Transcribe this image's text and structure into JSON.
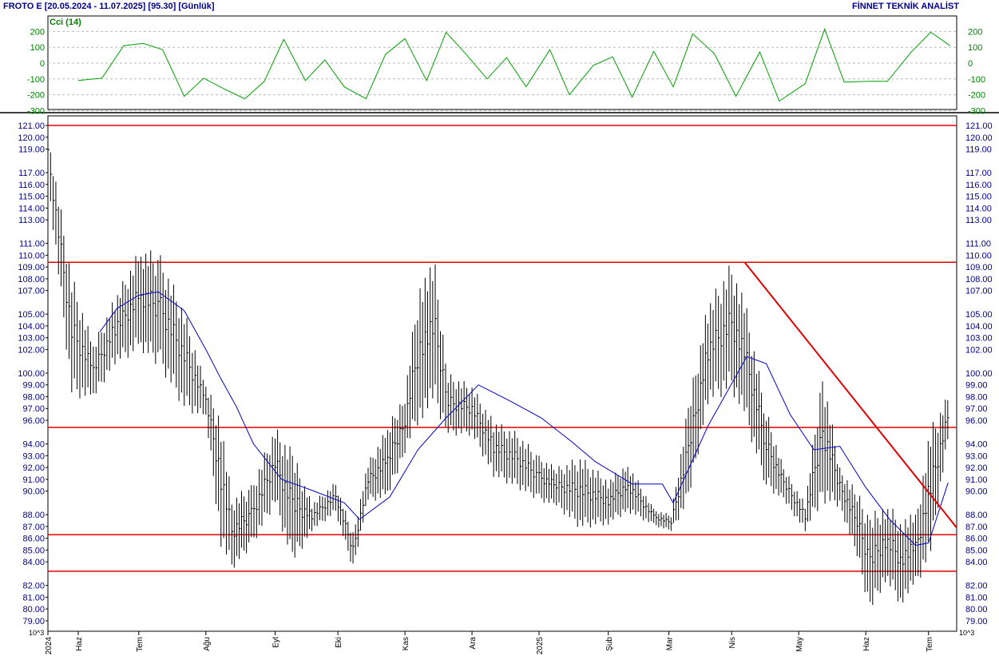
{
  "header": {
    "title": "FROTO E  [20.05.2024 - 11.07.2025]  [95.30]  [Günlük]",
    "brand": "FİNNET TEKNİK ANALİST"
  },
  "chart_data": [
    {
      "type": "line",
      "title": "Cci (14)",
      "ylim": [
        -300,
        300
      ],
      "yticks": [
        "200",
        "100",
        "0",
        "-100",
        "-200",
        "-300"
      ],
      "line_color": "#00a000",
      "x": [
        "2024-06-03",
        "2024-06-14",
        "2024-06-24",
        "2024-07-03",
        "2024-07-12",
        "2024-07-22",
        "2024-07-31",
        "2024-08-09",
        "2024-08-19",
        "2024-08-28",
        "2024-09-06",
        "2024-09-16",
        "2024-09-25",
        "2024-10-04",
        "2024-10-14",
        "2024-10-23",
        "2024-11-01",
        "2024-11-11",
        "2024-11-20",
        "2024-11-29",
        "2024-12-09",
        "2024-12-18",
        "2024-12-27",
        "2025-01-07",
        "2025-01-16",
        "2025-01-27",
        "2025-02-05",
        "2025-02-14",
        "2025-02-24",
        "2025-03-05",
        "2025-03-14",
        "2025-03-24",
        "2025-04-03",
        "2025-04-14",
        "2025-04-23",
        "2025-05-05",
        "2025-05-14",
        "2025-05-23",
        "2025-06-03",
        "2025-06-12",
        "2025-06-23",
        "2025-07-02",
        "2025-07-11"
      ],
      "values": [
        -110,
        -95,
        110,
        125,
        85,
        -210,
        -95,
        -160,
        -225,
        -115,
        150,
        -110,
        20,
        -150,
        -225,
        55,
        155,
        -110,
        195,
        60,
        -100,
        35,
        -150,
        85,
        -200,
        -15,
        40,
        -215,
        75,
        -150,
        185,
        60,
        -210,
        70,
        -240,
        -130,
        215,
        -120,
        -115,
        -115,
        70,
        195,
        110
      ]
    },
    {
      "type": "bar",
      "title": "",
      "ylim": [
        78.5,
        121.4
      ],
      "yticks": [
        "121.00",
        "120.00",
        "119.00",
        "117.00",
        "116.00",
        "115.00",
        "114.00",
        "113.00",
        "111.00",
        "110.00",
        "109.00",
        "108.00",
        "107.00",
        "105.00",
        "104.00",
        "103.00",
        "102.00",
        "100.00",
        "99.00",
        "98.00",
        "97.00",
        "96.00",
        "94.00",
        "93.00",
        "92.00",
        "91.00",
        "90.00",
        "88.00",
        "87.00",
        "86.00",
        "85.00",
        "84.00",
        "82.00",
        "81.00",
        "80.00",
        "79.00"
      ],
      "x_ticks": [
        "2024",
        "Haz",
        "Tem",
        "Ağu",
        "Eyl",
        "Eki",
        "Kas",
        "Ara",
        "2025",
        "Şub",
        "Mar",
        "Nis",
        "May",
        "Haz",
        "Tem"
      ],
      "unit_label": "10^3",
      "horizontal_lines": [
        121.0,
        109.4,
        95.4,
        86.3,
        83.2
      ],
      "trendline": {
        "from": [
          "2025-04-07",
          109.4
        ],
        "to": [
          "2025-07-14",
          86.9
        ]
      },
      "ma_series": {
        "name": "",
        "x": [
          "2024-06-13",
          "2024-06-21",
          "2024-07-01",
          "2024-07-10",
          "2024-07-22",
          "2024-08-01",
          "2024-08-08",
          "2024-08-15",
          "2024-08-23",
          "2024-09-05",
          "2024-09-20",
          "2024-10-04",
          "2024-10-11",
          "2024-10-25",
          "2024-11-07",
          "2024-11-20",
          "2024-12-05",
          "2024-12-20",
          "2025-01-03",
          "2025-01-17",
          "2025-01-28",
          "2025-02-14",
          "2025-02-28",
          "2025-03-05",
          "2025-03-21",
          "2025-04-08",
          "2025-04-17",
          "2025-04-28",
          "2025-05-09",
          "2025-05-21",
          "2025-06-02",
          "2025-06-13",
          "2025-06-19",
          "2025-06-25",
          "2025-07-01",
          "2025-07-10"
        ],
        "values": [
          103.5,
          105.5,
          106.6,
          106.9,
          105.3,
          102.0,
          99.5,
          97.2,
          94.0,
          91.0,
          90.0,
          89.0,
          87.6,
          89.5,
          93.5,
          96.2,
          99.0,
          97.6,
          96.2,
          94.2,
          92.5,
          90.6,
          90.6,
          89.0,
          95.5,
          101.4,
          100.8,
          96.5,
          93.5,
          93.8,
          90.3,
          87.6,
          86.5,
          85.4,
          85.6,
          90.7
        ]
      },
      "bars": {
        "x": [
          "2024-05-20",
          "2024-05-31",
          "2024-06-10",
          "2024-06-20",
          "2024-07-02",
          "2024-07-11",
          "2024-07-22",
          "2024-08-01",
          "2024-08-08",
          "2024-08-13",
          "2024-08-22",
          "2024-09-02",
          "2024-09-10",
          "2024-09-19",
          "2024-09-30",
          "2024-10-08",
          "2024-10-15",
          "2024-10-24",
          "2024-11-01",
          "2024-11-08",
          "2024-11-15",
          "2024-11-21",
          "2024-12-02",
          "2024-12-12",
          "2024-12-23",
          "2025-01-02",
          "2025-01-10",
          "2025-01-21",
          "2025-02-03",
          "2025-02-12",
          "2025-02-24",
          "2025-03-04",
          "2025-03-12",
          "2025-03-21",
          "2025-04-01",
          "2025-04-08",
          "2025-04-17",
          "2025-04-25",
          "2025-05-05",
          "2025-05-13",
          "2025-05-21",
          "2025-05-29",
          "2025-06-04",
          "2025-06-11",
          "2025-06-18",
          "2025-06-25",
          "2025-07-02",
          "2025-07-11"
        ],
        "high": [
          120.6,
          108.5,
          102.5,
          106.5,
          110.8,
          110.0,
          105.5,
          99.0,
          96.5,
          89.5,
          90.5,
          95.5,
          93.5,
          89.0,
          90.8,
          86.5,
          92.5,
          95.5,
          98.5,
          108.5,
          109.2,
          100.0,
          99.0,
          96.0,
          95.0,
          93.0,
          92.0,
          93.0,
          91.0,
          92.5,
          88.5,
          88.0,
          97.5,
          106.0,
          109.5,
          105.5,
          97.0,
          92.0,
          89.0,
          100.5,
          92.0,
          90.0,
          88.0,
          89.0,
          88.0,
          88.0,
          95.5,
          98.5
        ],
        "low": [
          116.0,
          97.5,
          97.5,
          100.5,
          101.5,
          100.0,
          96.5,
          96.0,
          84.8,
          83.0,
          85.0,
          88.5,
          83.2,
          86.5,
          88.0,
          83.2,
          89.0,
          89.0,
          93.0,
          95.5,
          96.5,
          94.5,
          94.5,
          91.0,
          90.0,
          89.0,
          88.5,
          86.5,
          87.0,
          88.0,
          87.0,
          86.5,
          88.5,
          97.0,
          98.0,
          95.0,
          90.0,
          89.0,
          86.5,
          88.5,
          88.5,
          84.0,
          79.2,
          82.0,
          80.0,
          81.5,
          84.0,
          95.3
        ]
      }
    }
  ]
}
